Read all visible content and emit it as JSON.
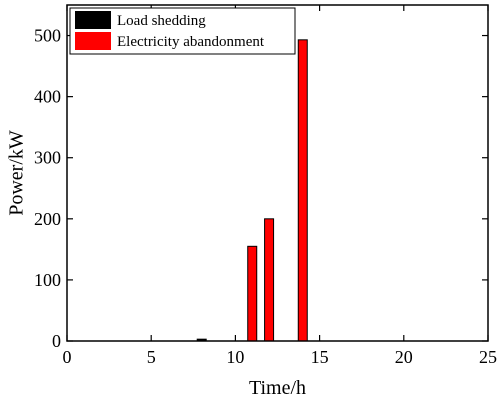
{
  "chart_data": {
    "type": "bar",
    "xlabel": "Time/h",
    "ylabel": "Power/kW",
    "xlim": [
      0,
      25
    ],
    "ylim": [
      0,
      550
    ],
    "xticks": [
      0,
      5,
      10,
      15,
      20,
      25
    ],
    "yticks": [
      0,
      100,
      200,
      300,
      400,
      500
    ],
    "grid": false,
    "legend_position": "top-left",
    "series": [
      {
        "name": "Load shedding",
        "color": "#000000",
        "x": [
          8
        ],
        "values": [
          3
        ]
      },
      {
        "name": "Electricity abandonment",
        "color": "#ff0000",
        "x": [
          11,
          12,
          14
        ],
        "values": [
          155,
          200,
          493
        ]
      }
    ]
  }
}
